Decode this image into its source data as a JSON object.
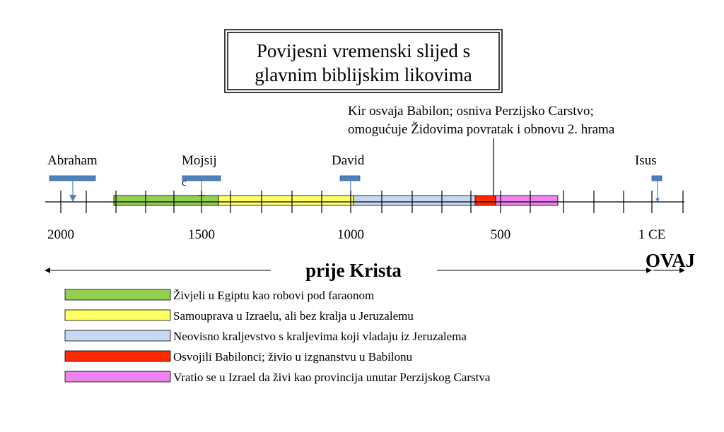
{
  "title": {
    "line1": "Povijesni vremenski slijed s",
    "line2": "glavnim biblijskim likovima"
  },
  "annotation": {
    "line1": "Kir osvaja Babilon; osniva Perzijsko Carstvo;",
    "line2": "omogućuje Židovima povratak i obnovu 2. hrama"
  },
  "figures": [
    {
      "name": "Abraham"
    },
    {
      "name": "Mojsij"
    },
    {
      "name": "David"
    },
    {
      "name": "Isus"
    }
  ],
  "stray_mark": "c",
  "axis_labels": [
    "2000",
    "1500",
    "1000",
    "500",
    "1 CE"
  ],
  "eras": {
    "bc_label": "prije Krista",
    "ad_label": "OVAJ"
  },
  "periods": [
    {
      "color": "#92d050",
      "label": "Živjeli u Egiptu kao robovi pod faraonom"
    },
    {
      "color": "#ffff66",
      "label": "Samouprava u Izraelu, ali bez kralja u Jeruzalemu"
    },
    {
      "color": "#c6d9f1",
      "label": "Neovisno kraljevstvo s kraljevima koji vladaju iz Jeruzalema"
    },
    {
      "color": "#ff2a00",
      "label": "Osvojili Babilonci; živio u izgnanstvu u Babilonu"
    },
    {
      "color": "#ee82ee",
      "label": "Vratio se u Izrael da živi kao provincija unutar Perzijskog Carstva"
    }
  ],
  "colors": {
    "marker_fill": "#4f81bd",
    "marker_stroke": "#2f5f93"
  }
}
